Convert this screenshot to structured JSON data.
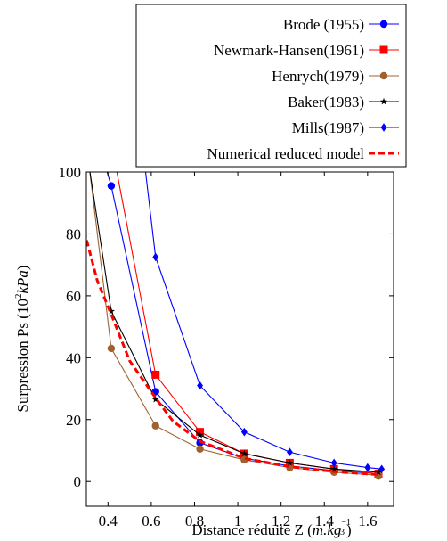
{
  "chart_data": {
    "type": "line",
    "xlabel": "Distance réduite Z",
    "xlabel_unit": {
      "open": "(",
      "base": "m.kg",
      "sup_num": "−1",
      "sup_den": "3",
      "close": ")"
    },
    "ylabel": "Surpression Ps",
    "ylabel_unit": {
      "open": "(10",
      "exp": "2",
      "unit": "kPa",
      "close": ")"
    },
    "xlim": [
      0.3,
      1.72
    ],
    "ylim": [
      -8,
      100
    ],
    "xticks": [
      0.4,
      0.6,
      0.8,
      1,
      1.2,
      1.4,
      1.6
    ],
    "yticks": [
      0,
      20,
      40,
      60,
      80,
      100
    ],
    "xtick_labels": [
      "0.4",
      "0.6",
      "0.8",
      "1",
      "1.2",
      "1.4",
      "1.6"
    ],
    "ytick_labels": [
      "0",
      "20",
      "40",
      "60",
      "80",
      "100"
    ],
    "grid": false,
    "legend_position": "top-right, outside above plot",
    "series": [
      {
        "name": "Brode (1955)",
        "color": "#0000ff",
        "marker": "circle",
        "style": "solid",
        "x": [
          0.31,
          0.415,
          0.62,
          0.825,
          1.03,
          1.24,
          1.445,
          1.65
        ],
        "y": [
          120,
          95.5,
          29,
          12.5,
          7.5,
          5,
          3.5,
          2.5
        ]
      },
      {
        "name": "Newmark-Hansen(1961)",
        "color": "#ff0000",
        "marker": "square",
        "style": "solid",
        "x": [
          0.4,
          0.62,
          0.825,
          1.03,
          1.24,
          1.445,
          1.65
        ],
        "y": [
          115,
          34.5,
          16,
          9,
          6,
          4,
          2.5
        ]
      },
      {
        "name": "Henrych(1979)",
        "color": "#a0612e",
        "marker": "circle",
        "style": "solid",
        "x": [
          0.29,
          0.415,
          0.62,
          0.825,
          1.03,
          1.24,
          1.445,
          1.65
        ],
        "y": [
          115,
          43,
          18,
          10.5,
          7,
          4.5,
          3,
          2
        ]
      },
      {
        "name": "Baker(1983)",
        "color": "#000000",
        "marker": "star",
        "style": "solid",
        "x": [
          0.31,
          0.415,
          0.62,
          0.825,
          1.03,
          1.24,
          1.445,
          1.65
        ],
        "y": [
          103,
          55,
          26.5,
          15,
          9,
          6,
          4,
          3
        ]
      },
      {
        "name": "Mills(1987)",
        "color": "#0000ff",
        "marker": "diamond",
        "style": "solid",
        "x": [
          0.54,
          0.62,
          0.825,
          1.03,
          1.24,
          1.445,
          1.6,
          1.665
        ],
        "y": [
          120,
          72.5,
          31,
          16,
          9.5,
          6,
          4.5,
          4
        ]
      },
      {
        "name": "Numerical reduced model",
        "color": "#ff0000",
        "marker": "none",
        "style": "dashed",
        "x": [
          0.29,
          0.35,
          0.415,
          0.5,
          0.62,
          0.7,
          0.825,
          1.03,
          1.24,
          1.445,
          1.65
        ],
        "y": [
          81,
          65,
          54,
          39,
          27,
          19.5,
          13,
          7.5,
          4.8,
          3.2,
          2.2
        ]
      }
    ]
  }
}
